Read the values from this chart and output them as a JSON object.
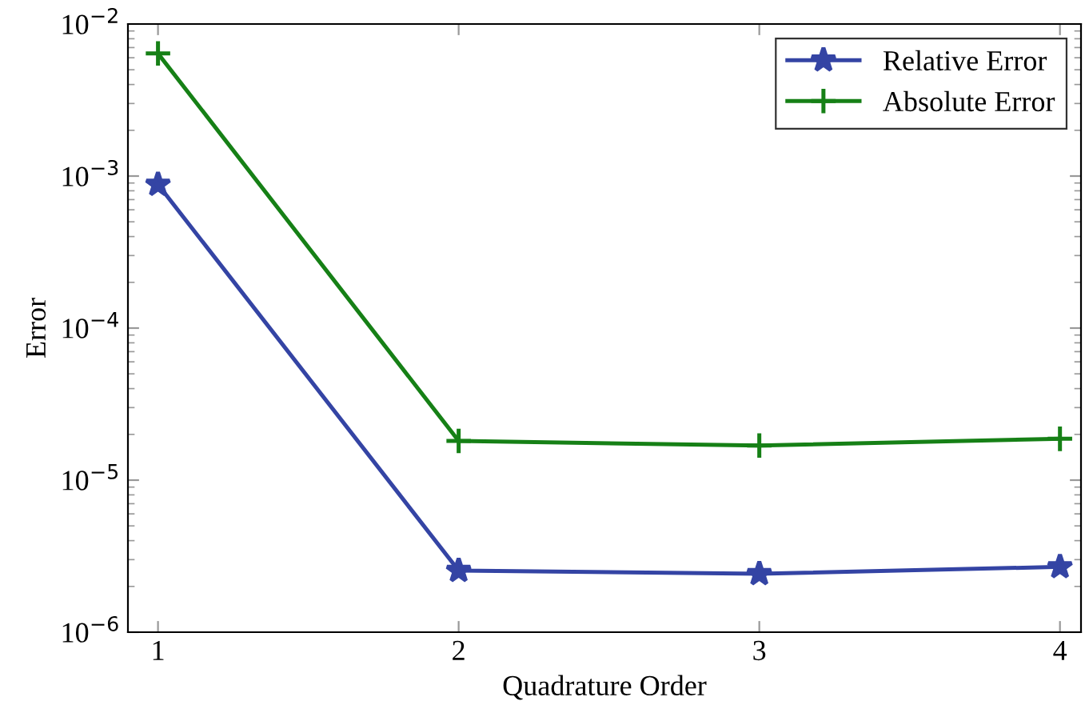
{
  "chart_data": {
    "type": "line",
    "xlabel": "Quadrature Order",
    "ylabel": "Error",
    "x": [
      1,
      2,
      3,
      4
    ],
    "log": "y",
    "xlim": [
      0.9,
      4.07
    ],
    "xticks": [
      1,
      2,
      3,
      4
    ],
    "ylim": [
      1e-06,
      0.01
    ],
    "yticks": [
      {
        "value": 1e-06,
        "label": "10$^{−6}$"
      },
      {
        "value": 1e-05,
        "label": "10$^{−5}$"
      },
      {
        "value": 0.0001,
        "label": "10$^{−4}$"
      },
      {
        "value": 0.001,
        "label": "10$^{−3}$"
      },
      {
        "value": 0.01,
        "label": "10$^{−2}$"
      }
    ],
    "grid": false,
    "legend": "top right",
    "line_style": "solid",
    "series": [
      {
        "name": "Relative Error",
        "color": "#3444a4",
        "marker": "star",
        "values": [
          0.00088,
          2.54e-06,
          2.42e-06,
          2.69e-06
        ]
      },
      {
        "name": "Absolute Error",
        "color": "#168016",
        "marker": "cross",
        "values": [
          0.0064,
          1.81e-05,
          1.69e-05,
          1.87e-05
        ]
      }
    ]
  }
}
